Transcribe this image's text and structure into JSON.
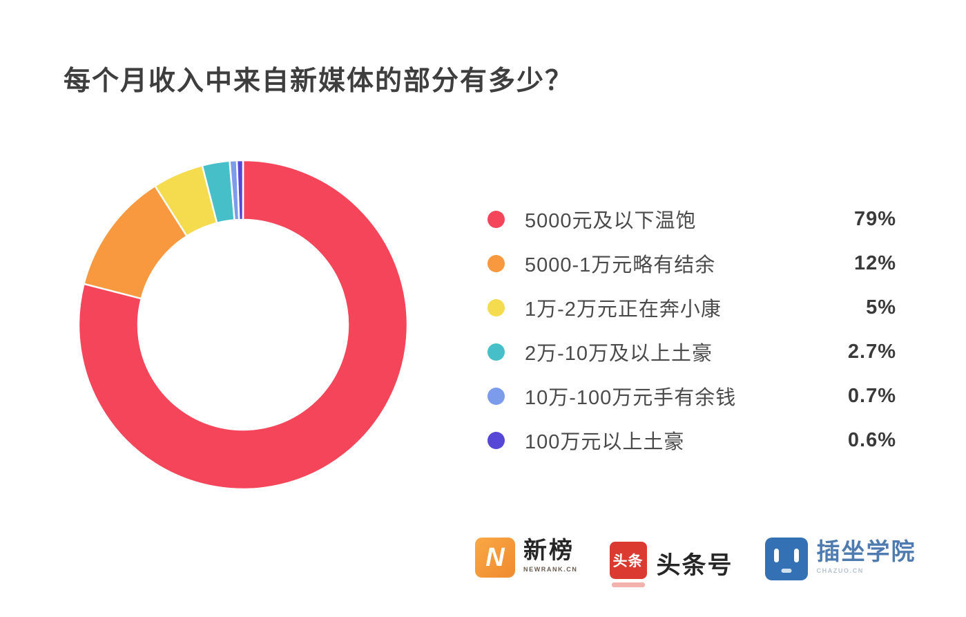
{
  "title": "每个月收入中来自新媒体的部分有多少？",
  "chart_data": {
    "type": "pie",
    "subtype": "donut",
    "title": "每个月收入中来自新媒体的部分有多少？",
    "categories": [
      "5000元及以下温饱",
      "5000-1万元略有结余",
      "1万-2万元正在奔小康",
      "2万-10万及以上土豪",
      "10万-100万元手有余钱",
      "100万元以上土豪"
    ],
    "values": [
      79,
      12,
      5,
      2.7,
      0.7,
      0.6
    ],
    "value_labels": [
      "79%",
      "12%",
      "5%",
      "2.7%",
      "0.7%",
      "0.6%"
    ],
    "units": "%",
    "colors": [
      "#F4455A",
      "#F8993F",
      "#F5DB4E",
      "#47BFC8",
      "#7D9BEB",
      "#5747D6"
    ],
    "start_angle_deg": -90,
    "direction": "clockwise",
    "inner_radius_ratio": 0.64,
    "slice_gap_color": "#ffffff",
    "legend_position": "right",
    "grid": false
  },
  "footer": {
    "newrank": {
      "badge_letter": "N",
      "name": "新榜",
      "subtext": "NEWRANK.CN",
      "badge_color": "#F6913D"
    },
    "toutiao": {
      "badge_text": "头条",
      "name": "头条号",
      "badge_color": "#DB3A30"
    },
    "chazuo": {
      "name": "插坐学院",
      "subtext": "CHAZUO.CN",
      "badge_color": "#3371B4"
    }
  }
}
